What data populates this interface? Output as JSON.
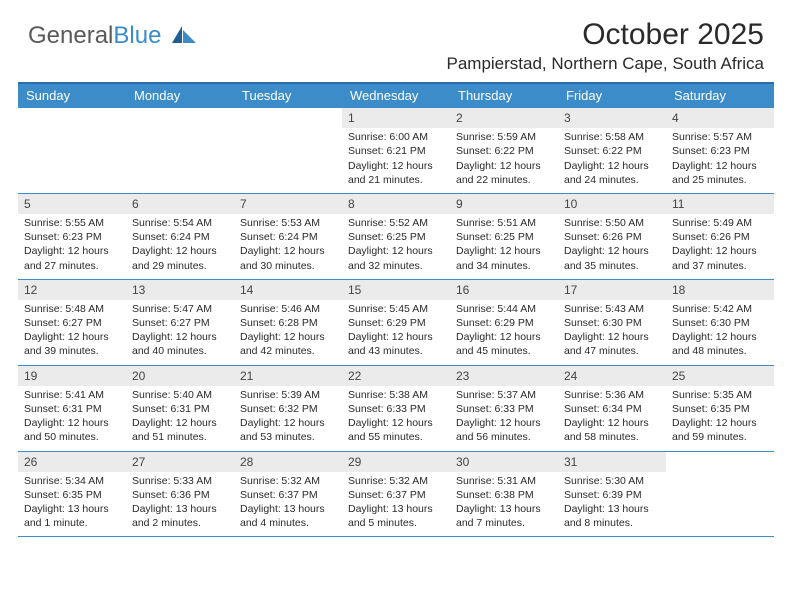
{
  "brand": {
    "part1": "General",
    "part2": "Blue"
  },
  "title": "October 2025",
  "location": "Pampierstad, Northern Cape, South Africa",
  "colors": {
    "header_bar": "#3b8cc9",
    "header_text": "#ffffff",
    "row_border": "#3b8cc9",
    "daynum_bg": "#ebebeb",
    "text": "#2a2a2a",
    "brand_gray": "#5a5a5a",
    "brand_blue": "#3b8cc9"
  },
  "day_names": [
    "Sunday",
    "Monday",
    "Tuesday",
    "Wednesday",
    "Thursday",
    "Friday",
    "Saturday"
  ],
  "weeks": [
    [
      {
        "n": "",
        "sr": "",
        "ss": "",
        "dl": ""
      },
      {
        "n": "",
        "sr": "",
        "ss": "",
        "dl": ""
      },
      {
        "n": "",
        "sr": "",
        "ss": "",
        "dl": ""
      },
      {
        "n": "1",
        "sr": "Sunrise: 6:00 AM",
        "ss": "Sunset: 6:21 PM",
        "dl": "Daylight: 12 hours and 21 minutes."
      },
      {
        "n": "2",
        "sr": "Sunrise: 5:59 AM",
        "ss": "Sunset: 6:22 PM",
        "dl": "Daylight: 12 hours and 22 minutes."
      },
      {
        "n": "3",
        "sr": "Sunrise: 5:58 AM",
        "ss": "Sunset: 6:22 PM",
        "dl": "Daylight: 12 hours and 24 minutes."
      },
      {
        "n": "4",
        "sr": "Sunrise: 5:57 AM",
        "ss": "Sunset: 6:23 PM",
        "dl": "Daylight: 12 hours and 25 minutes."
      }
    ],
    [
      {
        "n": "5",
        "sr": "Sunrise: 5:55 AM",
        "ss": "Sunset: 6:23 PM",
        "dl": "Daylight: 12 hours and 27 minutes."
      },
      {
        "n": "6",
        "sr": "Sunrise: 5:54 AM",
        "ss": "Sunset: 6:24 PM",
        "dl": "Daylight: 12 hours and 29 minutes."
      },
      {
        "n": "7",
        "sr": "Sunrise: 5:53 AM",
        "ss": "Sunset: 6:24 PM",
        "dl": "Daylight: 12 hours and 30 minutes."
      },
      {
        "n": "8",
        "sr": "Sunrise: 5:52 AM",
        "ss": "Sunset: 6:25 PM",
        "dl": "Daylight: 12 hours and 32 minutes."
      },
      {
        "n": "9",
        "sr": "Sunrise: 5:51 AM",
        "ss": "Sunset: 6:25 PM",
        "dl": "Daylight: 12 hours and 34 minutes."
      },
      {
        "n": "10",
        "sr": "Sunrise: 5:50 AM",
        "ss": "Sunset: 6:26 PM",
        "dl": "Daylight: 12 hours and 35 minutes."
      },
      {
        "n": "11",
        "sr": "Sunrise: 5:49 AM",
        "ss": "Sunset: 6:26 PM",
        "dl": "Daylight: 12 hours and 37 minutes."
      }
    ],
    [
      {
        "n": "12",
        "sr": "Sunrise: 5:48 AM",
        "ss": "Sunset: 6:27 PM",
        "dl": "Daylight: 12 hours and 39 minutes."
      },
      {
        "n": "13",
        "sr": "Sunrise: 5:47 AM",
        "ss": "Sunset: 6:27 PM",
        "dl": "Daylight: 12 hours and 40 minutes."
      },
      {
        "n": "14",
        "sr": "Sunrise: 5:46 AM",
        "ss": "Sunset: 6:28 PM",
        "dl": "Daylight: 12 hours and 42 minutes."
      },
      {
        "n": "15",
        "sr": "Sunrise: 5:45 AM",
        "ss": "Sunset: 6:29 PM",
        "dl": "Daylight: 12 hours and 43 minutes."
      },
      {
        "n": "16",
        "sr": "Sunrise: 5:44 AM",
        "ss": "Sunset: 6:29 PM",
        "dl": "Daylight: 12 hours and 45 minutes."
      },
      {
        "n": "17",
        "sr": "Sunrise: 5:43 AM",
        "ss": "Sunset: 6:30 PM",
        "dl": "Daylight: 12 hours and 47 minutes."
      },
      {
        "n": "18",
        "sr": "Sunrise: 5:42 AM",
        "ss": "Sunset: 6:30 PM",
        "dl": "Daylight: 12 hours and 48 minutes."
      }
    ],
    [
      {
        "n": "19",
        "sr": "Sunrise: 5:41 AM",
        "ss": "Sunset: 6:31 PM",
        "dl": "Daylight: 12 hours and 50 minutes."
      },
      {
        "n": "20",
        "sr": "Sunrise: 5:40 AM",
        "ss": "Sunset: 6:31 PM",
        "dl": "Daylight: 12 hours and 51 minutes."
      },
      {
        "n": "21",
        "sr": "Sunrise: 5:39 AM",
        "ss": "Sunset: 6:32 PM",
        "dl": "Daylight: 12 hours and 53 minutes."
      },
      {
        "n": "22",
        "sr": "Sunrise: 5:38 AM",
        "ss": "Sunset: 6:33 PM",
        "dl": "Daylight: 12 hours and 55 minutes."
      },
      {
        "n": "23",
        "sr": "Sunrise: 5:37 AM",
        "ss": "Sunset: 6:33 PM",
        "dl": "Daylight: 12 hours and 56 minutes."
      },
      {
        "n": "24",
        "sr": "Sunrise: 5:36 AM",
        "ss": "Sunset: 6:34 PM",
        "dl": "Daylight: 12 hours and 58 minutes."
      },
      {
        "n": "25",
        "sr": "Sunrise: 5:35 AM",
        "ss": "Sunset: 6:35 PM",
        "dl": "Daylight: 12 hours and 59 minutes."
      }
    ],
    [
      {
        "n": "26",
        "sr": "Sunrise: 5:34 AM",
        "ss": "Sunset: 6:35 PM",
        "dl": "Daylight: 13 hours and 1 minute."
      },
      {
        "n": "27",
        "sr": "Sunrise: 5:33 AM",
        "ss": "Sunset: 6:36 PM",
        "dl": "Daylight: 13 hours and 2 minutes."
      },
      {
        "n": "28",
        "sr": "Sunrise: 5:32 AM",
        "ss": "Sunset: 6:37 PM",
        "dl": "Daylight: 13 hours and 4 minutes."
      },
      {
        "n": "29",
        "sr": "Sunrise: 5:32 AM",
        "ss": "Sunset: 6:37 PM",
        "dl": "Daylight: 13 hours and 5 minutes."
      },
      {
        "n": "30",
        "sr": "Sunrise: 5:31 AM",
        "ss": "Sunset: 6:38 PM",
        "dl": "Daylight: 13 hours and 7 minutes."
      },
      {
        "n": "31",
        "sr": "Sunrise: 5:30 AM",
        "ss": "Sunset: 6:39 PM",
        "dl": "Daylight: 13 hours and 8 minutes."
      },
      {
        "n": "",
        "sr": "",
        "ss": "",
        "dl": ""
      }
    ]
  ]
}
